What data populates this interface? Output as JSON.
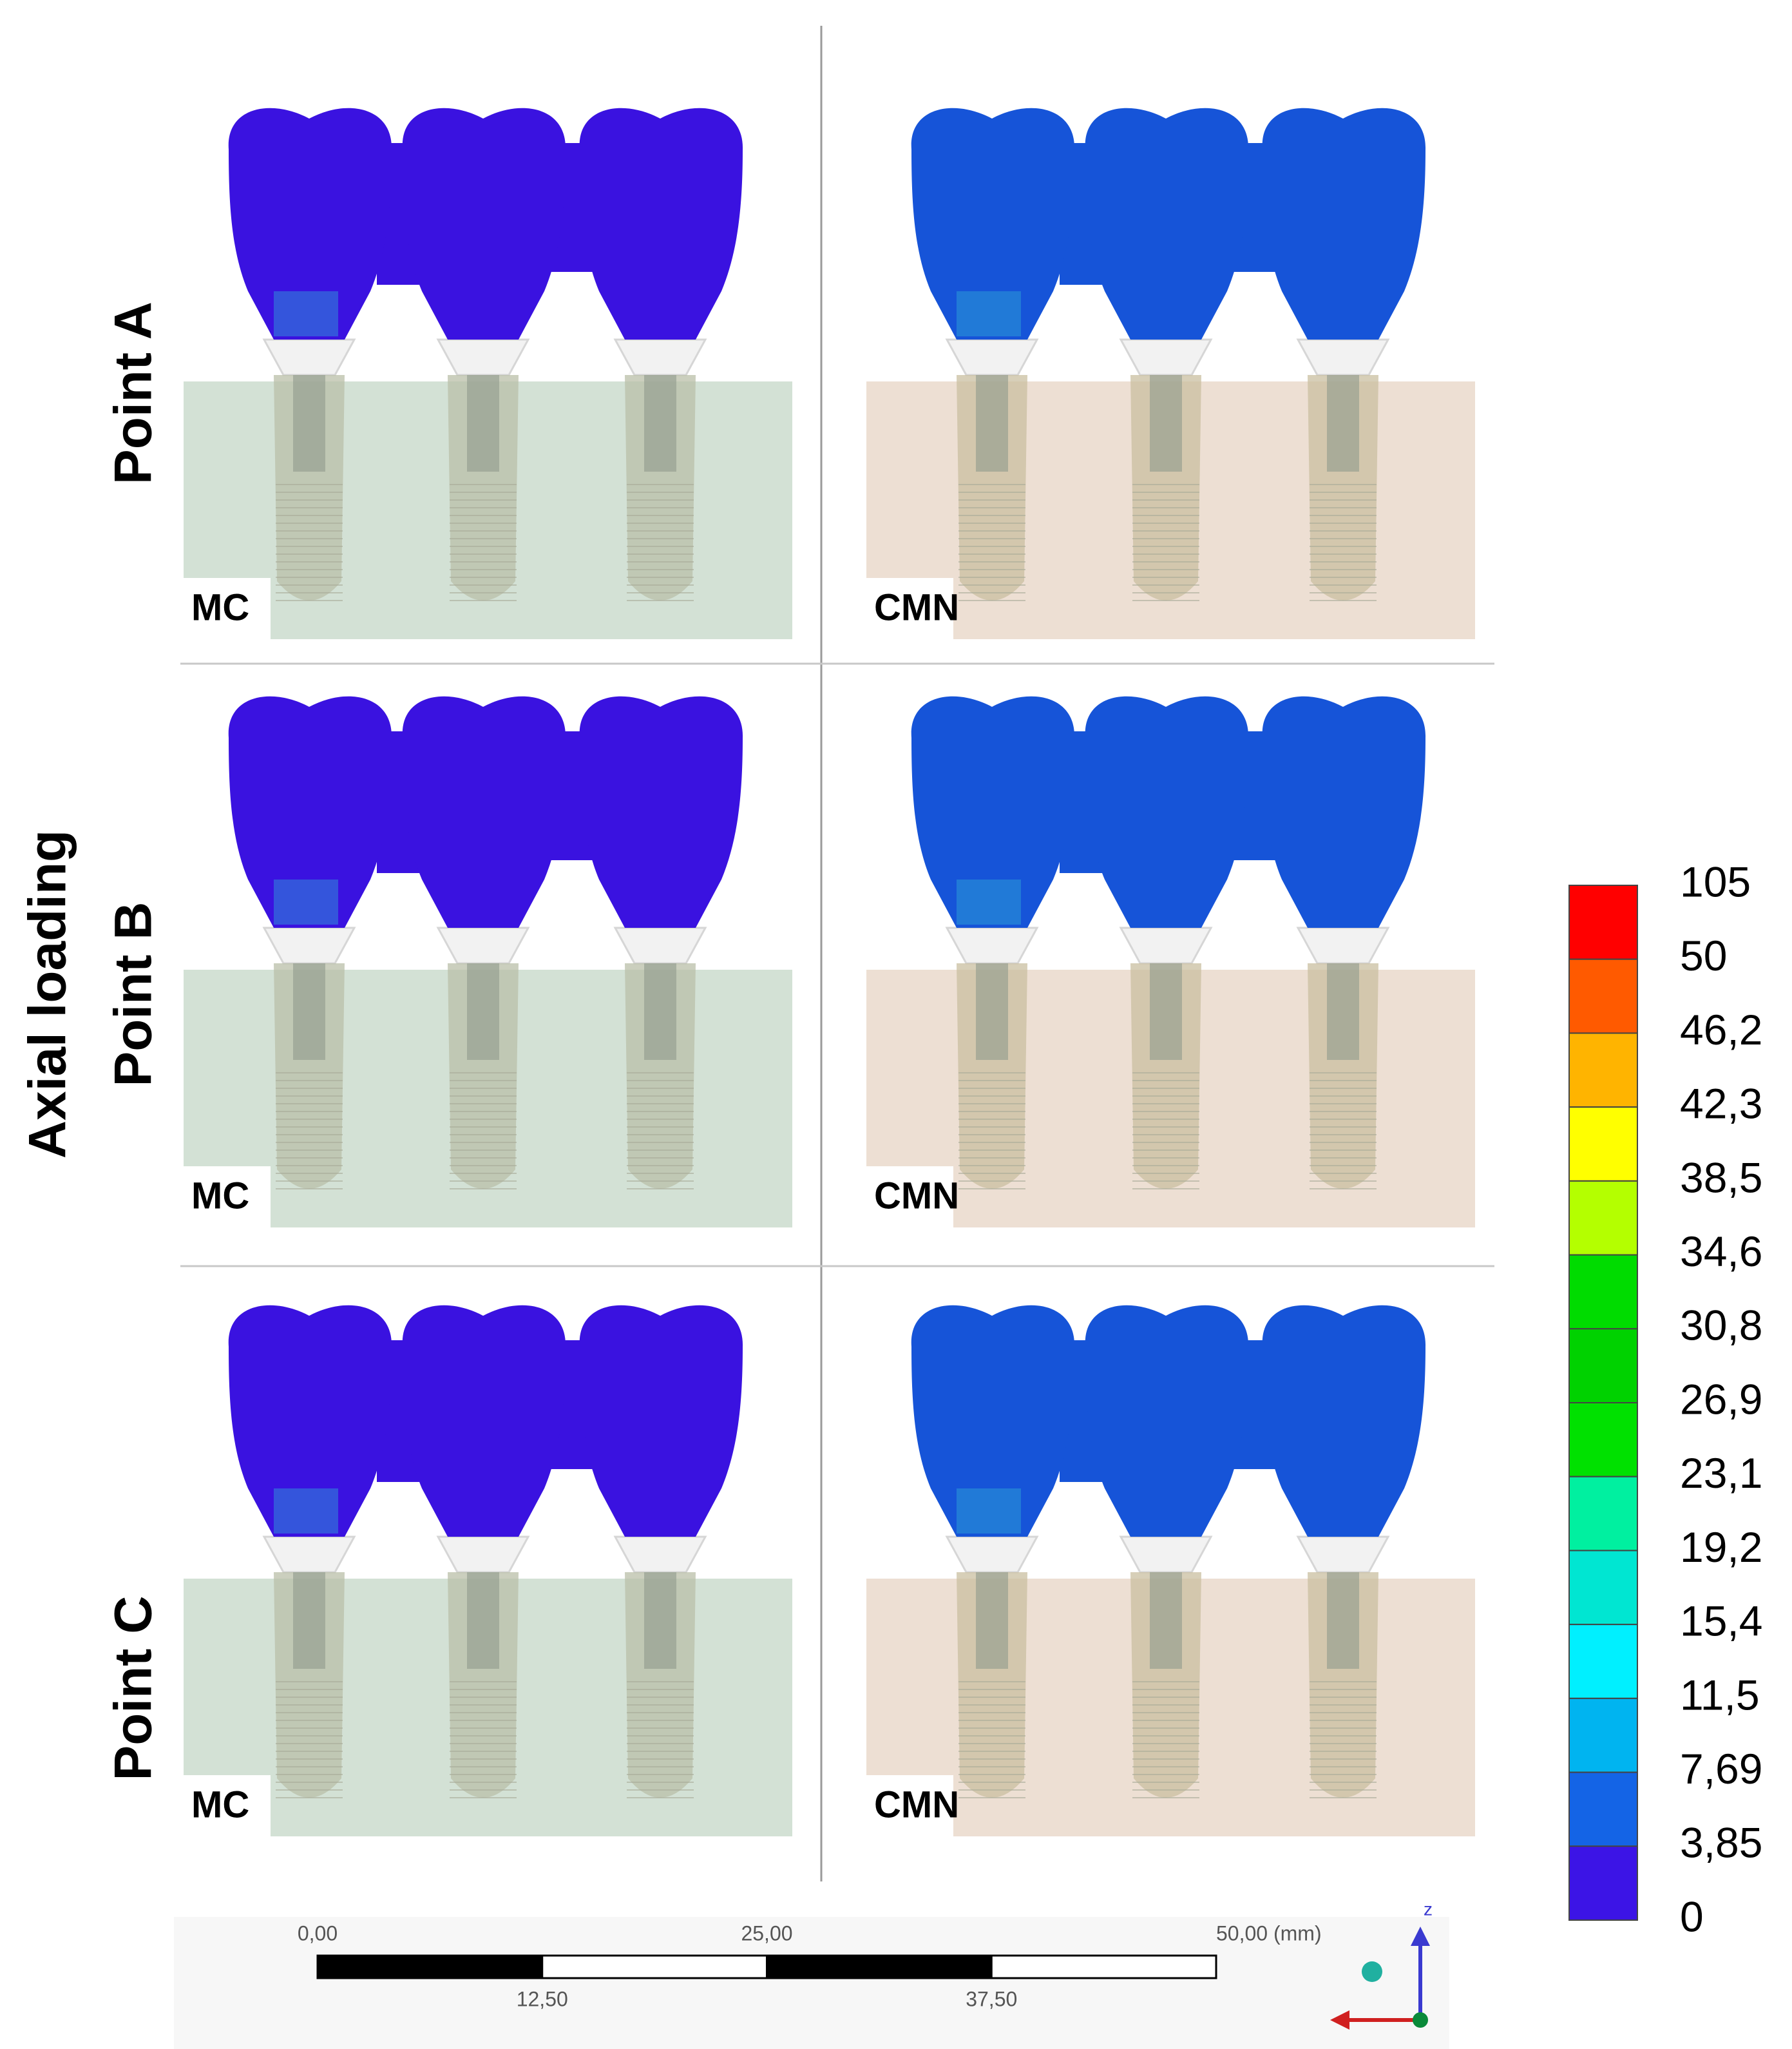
{
  "figure": {
    "axis_label": "Axial loading",
    "rows": [
      {
        "label": "Point A",
        "panels": [
          "MC",
          "CMN"
        ]
      },
      {
        "label": "Point B",
        "panels": [
          "MC",
          "CMN"
        ]
      },
      {
        "label": "Point C",
        "panels": [
          "MC",
          "CMN"
        ]
      }
    ],
    "legend": {
      "labels": [
        "105",
        "50",
        "46,2",
        "42,3",
        "38,5",
        "34,6",
        "30,8",
        "26,9",
        "23,1",
        "19,2",
        "15,4",
        "11,5",
        "7,69",
        "3,85",
        "0"
      ],
      "colors": [
        "#ff0000",
        "#ff5a00",
        "#ffb400",
        "#ffff00",
        "#b4ff00",
        "#00dc00",
        "#00d200",
        "#00e100",
        "#00f0a0",
        "#00e6d2",
        "#00f0ff",
        "#00b4f0",
        "#1464e6",
        "#3c14e6"
      ]
    },
    "scale_bar": {
      "top_labels": [
        "0,00",
        "25,00",
        "50,00 (mm)"
      ],
      "bottom_labels": [
        "12,50",
        "37,50"
      ]
    },
    "triad": {
      "axis": "z"
    }
  }
}
